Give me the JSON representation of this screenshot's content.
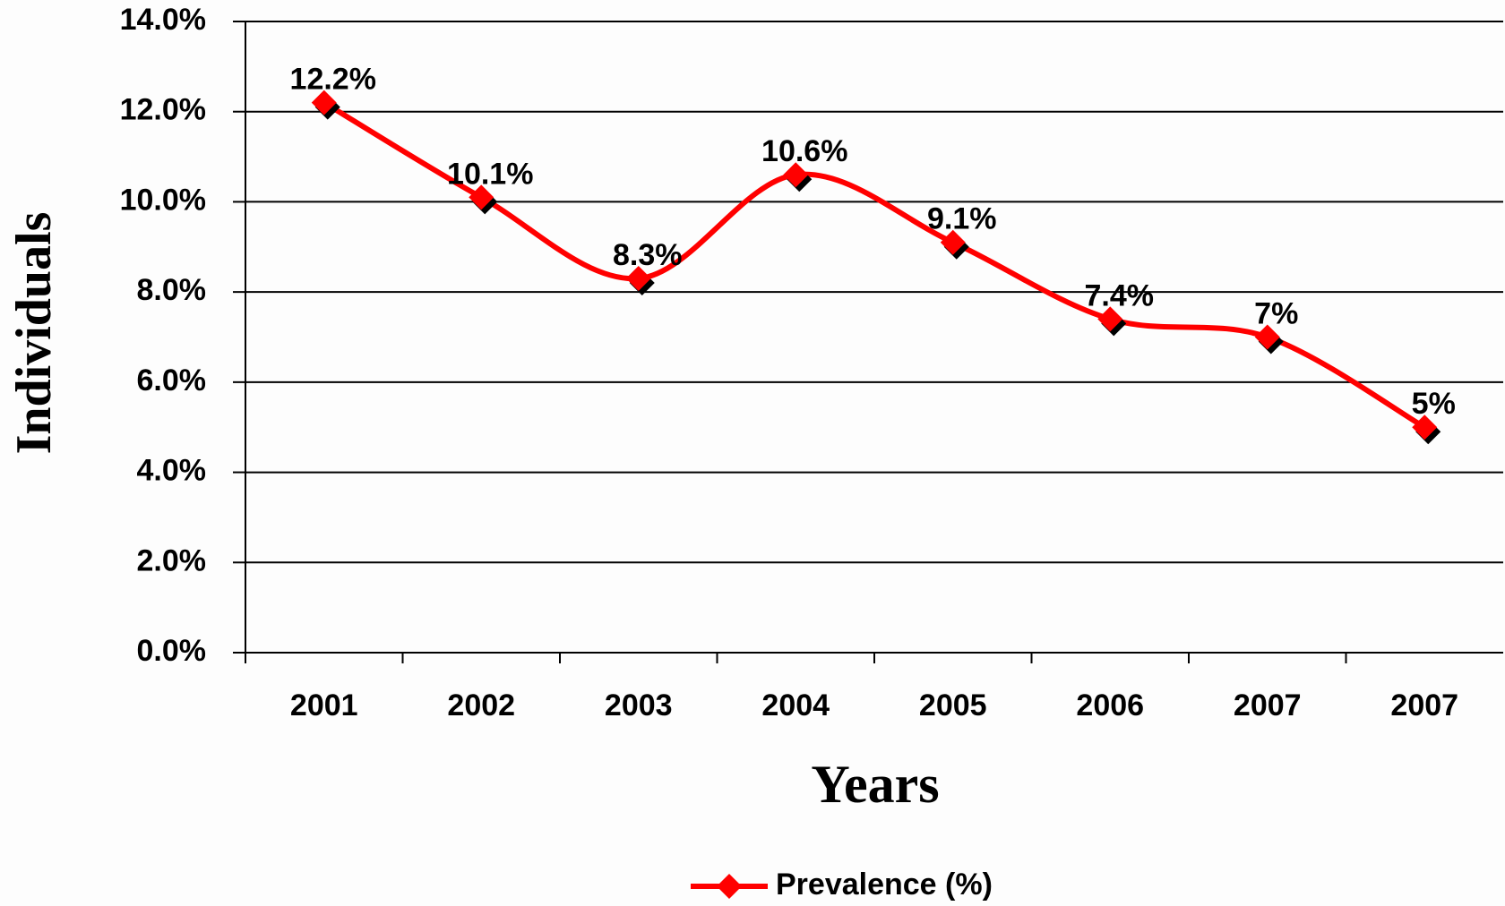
{
  "chart_data": {
    "type": "line",
    "x_label": "Years",
    "y_label": "Individuals",
    "categories": [
      "2001",
      "2002",
      "2003",
      "2004",
      "2005",
      "2006",
      "2007",
      "2007"
    ],
    "series": [
      {
        "name": "Prevalence (%)",
        "color": "#ff0000",
        "values": [
          12.2,
          10.1,
          8.3,
          10.6,
          9.1,
          7.4,
          7,
          5
        ],
        "value_labels": [
          "12.2%",
          "10.1%",
          "8.3%",
          "10.6%",
          "9.1%",
          "7.4%",
          "7%",
          "5%"
        ]
      }
    ],
    "ylim": [
      0,
      14
    ],
    "yticks": [
      {
        "value": 0,
        "label": "0.0%"
      },
      {
        "value": 2,
        "label": "2.0%"
      },
      {
        "value": 4,
        "label": "4.0%"
      },
      {
        "value": 6,
        "label": "6.0%"
      },
      {
        "value": 8,
        "label": "8.0%"
      },
      {
        "value": 10,
        "label": "10.0%"
      },
      {
        "value": 12,
        "label": "12.0%"
      },
      {
        "value": 14,
        "label": "14.0%"
      }
    ],
    "grid": true,
    "legend": "bottom"
  }
}
